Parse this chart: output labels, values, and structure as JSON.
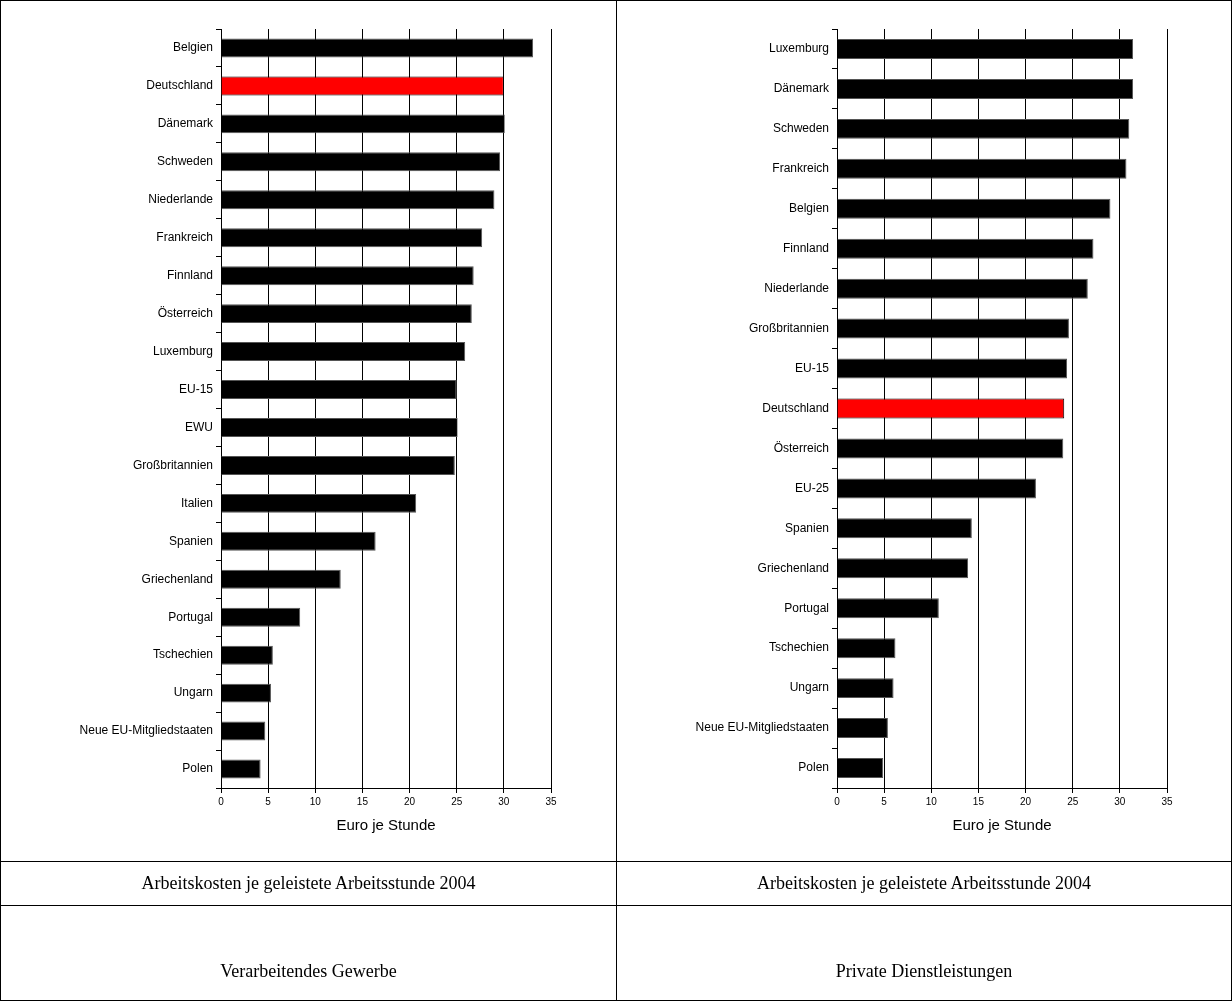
{
  "chart_data": [
    {
      "type": "bar",
      "orientation": "horizontal",
      "title": "Arbeitskosten je geleistete Arbeitsstunde 2004",
      "subtitle": "Verarbeitendes Gewerbe",
      "xlabel": "Euro je Stunde",
      "categories": [
        "Belgien",
        "Deutschland",
        "Dänemark",
        "Schweden",
        "Niederlande",
        "Frankreich",
        "Finnland",
        "Österreich",
        "Luxemburg",
        "EU-15",
        "EWU",
        "Großbritannien",
        "Italien",
        "Spanien",
        "Griechenland",
        "Portugal",
        "Tschechien",
        "Ungarn",
        "Neue EU-Mitgliedstaaten",
        "Polen"
      ],
      "values": [
        33.1,
        30.0,
        30.1,
        29.6,
        29.0,
        27.7,
        26.8,
        26.6,
        25.9,
        25.0,
        25.1,
        24.8,
        20.7,
        16.4,
        12.7,
        8.4,
        5.5,
        5.3,
        4.7,
        4.2
      ],
      "colors": [
        "#000000",
        "#ff0000",
        "#000000",
        "#000000",
        "#000000",
        "#000000",
        "#000000",
        "#000000",
        "#000000",
        "#000000",
        "#000000",
        "#000000",
        "#000000",
        "#000000",
        "#000000",
        "#000000",
        "#000000",
        "#000000",
        "#000000",
        "#000000"
      ],
      "xlim": [
        0,
        35
      ],
      "xticks": [
        0,
        5,
        10,
        15,
        20,
        25,
        30,
        35
      ],
      "grid": "x"
    },
    {
      "type": "bar",
      "orientation": "horizontal",
      "title": "Arbeitskosten je geleistete Arbeitsstunde 2004",
      "subtitle": "Private Dienstleistungen",
      "xlabel": "Euro je Stunde",
      "categories": [
        "Luxemburg",
        "Dänemark",
        "Schweden",
        "Frankreich",
        "Belgien",
        "Finnland",
        "Niederlande",
        "Großbritannien",
        "EU-15",
        "Deutschland",
        "Österreich",
        "EU-25",
        "Spanien",
        "Griechenland",
        "Portugal",
        "Tschechien",
        "Ungarn",
        "Neue EU-Mitgliedstaaten",
        "Polen"
      ],
      "values": [
        31.4,
        31.4,
        31.0,
        30.7,
        29.0,
        27.2,
        26.6,
        24.6,
        24.4,
        24.1,
        24.0,
        21.1,
        14.3,
        13.9,
        10.8,
        6.2,
        6.0,
        5.4,
        4.9
      ],
      "colors": [
        "#000000",
        "#000000",
        "#000000",
        "#000000",
        "#000000",
        "#000000",
        "#000000",
        "#000000",
        "#000000",
        "#ff0000",
        "#000000",
        "#000000",
        "#000000",
        "#000000",
        "#000000",
        "#000000",
        "#000000",
        "#000000",
        "#000000"
      ],
      "xlim": [
        0,
        35
      ],
      "xticks": [
        0,
        5,
        10,
        15,
        20,
        25,
        30,
        35
      ],
      "grid": "x"
    }
  ]
}
